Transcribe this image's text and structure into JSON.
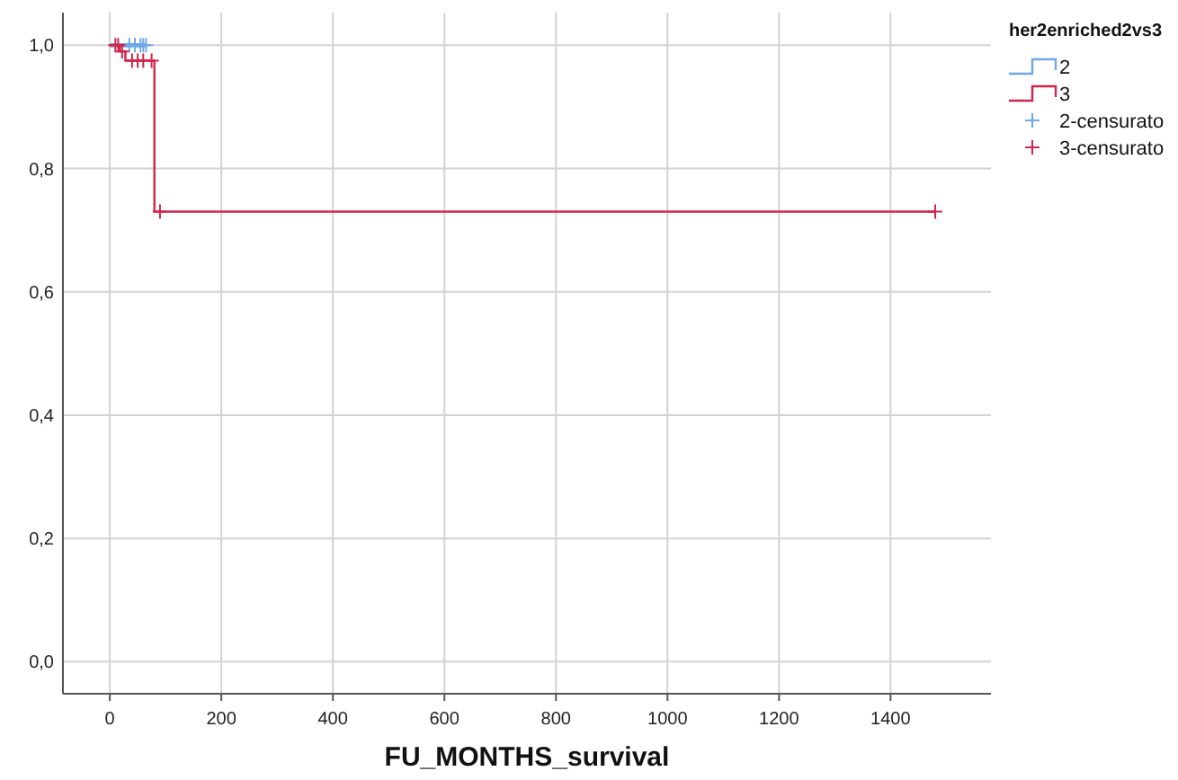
{
  "chart_data": {
    "type": "step",
    "xlabel": "FU_MONTHS_survival",
    "legend_title": "her2enriched2vs3",
    "series": [
      {
        "name": "2",
        "color": "#6fa8e8",
        "x": [
          0,
          65
        ],
        "values": [
          1,
          1
        ]
      },
      {
        "name": "3",
        "color": "#d0254a",
        "x": [
          0,
          18,
          28,
          80,
          1480
        ],
        "values": [
          1,
          0.99,
          0.975,
          0.73,
          0.73
        ]
      },
      {
        "name": "2-censurato",
        "type": "scatter",
        "marker": "cross",
        "color": "#6fa8e8",
        "x": [
          35,
          45,
          55,
          60,
          65
        ],
        "values": [
          1,
          1,
          1,
          1,
          1
        ]
      },
      {
        "name": "3-censurato",
        "type": "scatter",
        "marker": "cross",
        "color": "#d0254a",
        "x": [
          10,
          15,
          22,
          40,
          50,
          60,
          75,
          90,
          1480
        ],
        "values": [
          1,
          1,
          0.99,
          0.975,
          0.975,
          0.975,
          0.975,
          0.73,
          0.73
        ]
      }
    ],
    "xlim": [
      -84,
      1580
    ],
    "xticks": [
      0,
      200,
      400,
      600,
      800,
      1000,
      1200,
      1400
    ],
    "ylim": [
      -0.052,
      1.053
    ],
    "yticks": [
      {
        "value": 0,
        "label": "0,0"
      },
      {
        "value": 0.2,
        "label": "0,2"
      },
      {
        "value": 0.4,
        "label": "0,4"
      },
      {
        "value": 0.6,
        "label": "0,6"
      },
      {
        "value": 0.8,
        "label": "0,8"
      },
      {
        "value": 1,
        "label": "1,0"
      }
    ],
    "grid": true,
    "legend": "top right"
  }
}
